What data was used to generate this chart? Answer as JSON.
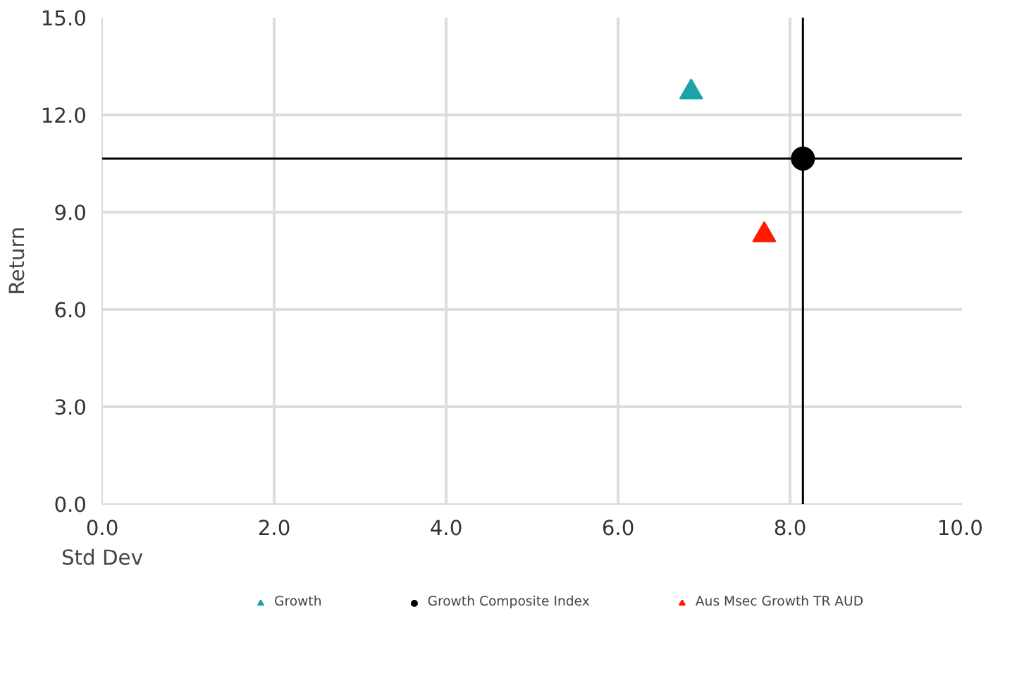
{
  "chart_data": {
    "type": "scatter",
    "xlabel": "Std Dev",
    "ylabel": "Return",
    "xlim": [
      0,
      10
    ],
    "ylim": [
      0,
      15
    ],
    "xticks": [
      {
        "value": 0,
        "label": "0.0"
      },
      {
        "value": 2,
        "label": "2.0"
      },
      {
        "value": 4,
        "label": "4.0"
      },
      {
        "value": 6,
        "label": "6.0"
      },
      {
        "value": 8,
        "label": "8.0"
      },
      {
        "value": 10,
        "label": "10.0"
      }
    ],
    "yticks": [
      {
        "value": 0,
        "label": "0.0"
      },
      {
        "value": 3,
        "label": "3.0"
      },
      {
        "value": 6,
        "label": "6.0"
      },
      {
        "value": 9,
        "label": "9.0"
      },
      {
        "value": 12,
        "label": "12.0"
      },
      {
        "value": 15,
        "label": "15.0"
      }
    ],
    "grid": true,
    "legend": "bottom",
    "series": [
      {
        "name": "Growth",
        "color": "#1aa3a8",
        "marker": "triangle",
        "x": [
          6.85
        ],
        "values": [
          12.7
        ]
      },
      {
        "name": "Growth Composite Index",
        "color": "#000000",
        "marker": "circle",
        "x": [
          8.15
        ],
        "values": [
          10.65
        ]
      },
      {
        "name": "Aus Msec Growth TR AUD",
        "color": "#ff1a00",
        "marker": "triangle",
        "x": [
          7.7
        ],
        "values": [
          8.3
        ]
      }
    ],
    "ref_lines": [
      {
        "axis": "x",
        "value": 8.15,
        "color": "#000000"
      },
      {
        "axis": "y",
        "value": 10.65,
        "color": "#000000"
      }
    ]
  }
}
